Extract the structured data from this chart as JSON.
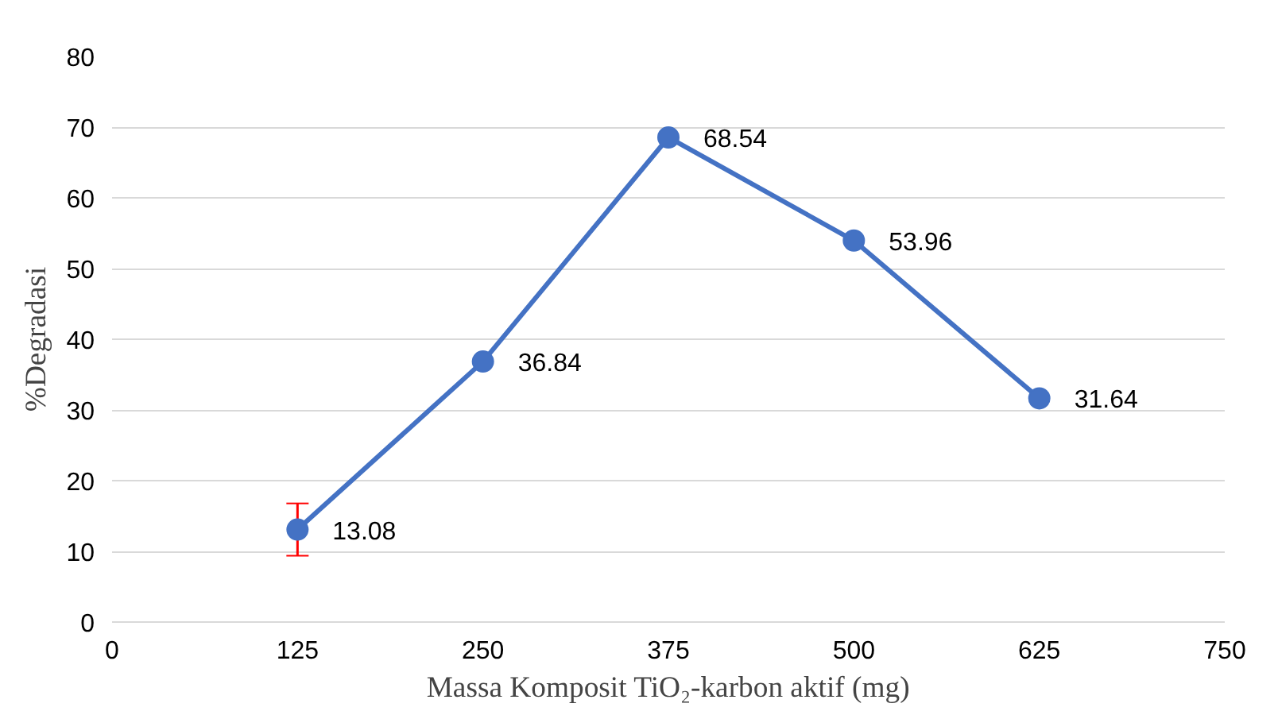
{
  "chart_data": {
    "type": "line",
    "xlabel": "Massa Komposit TiO₂-karbon aktif (mg)",
    "ylabel": "%Degradasi",
    "x": [
      125,
      250,
      375,
      500,
      625
    ],
    "series": [
      {
        "color": "#4472c4",
        "values": [
          13.08,
          36.84,
          68.54,
          53.96,
          31.64
        ],
        "errors": [
          3.7,
          null,
          null,
          null,
          null
        ]
      }
    ],
    "xlim": [
      0,
      750
    ],
    "xticks": [
      0,
      125,
      250,
      375,
      500,
      625,
      750
    ],
    "ylim": [
      0,
      80
    ],
    "yticks": [
      0,
      10,
      20,
      30,
      40,
      50,
      60,
      70,
      80
    ],
    "grid": "y",
    "marker": "circle",
    "line_style": "solid",
    "data_labels": true
  }
}
